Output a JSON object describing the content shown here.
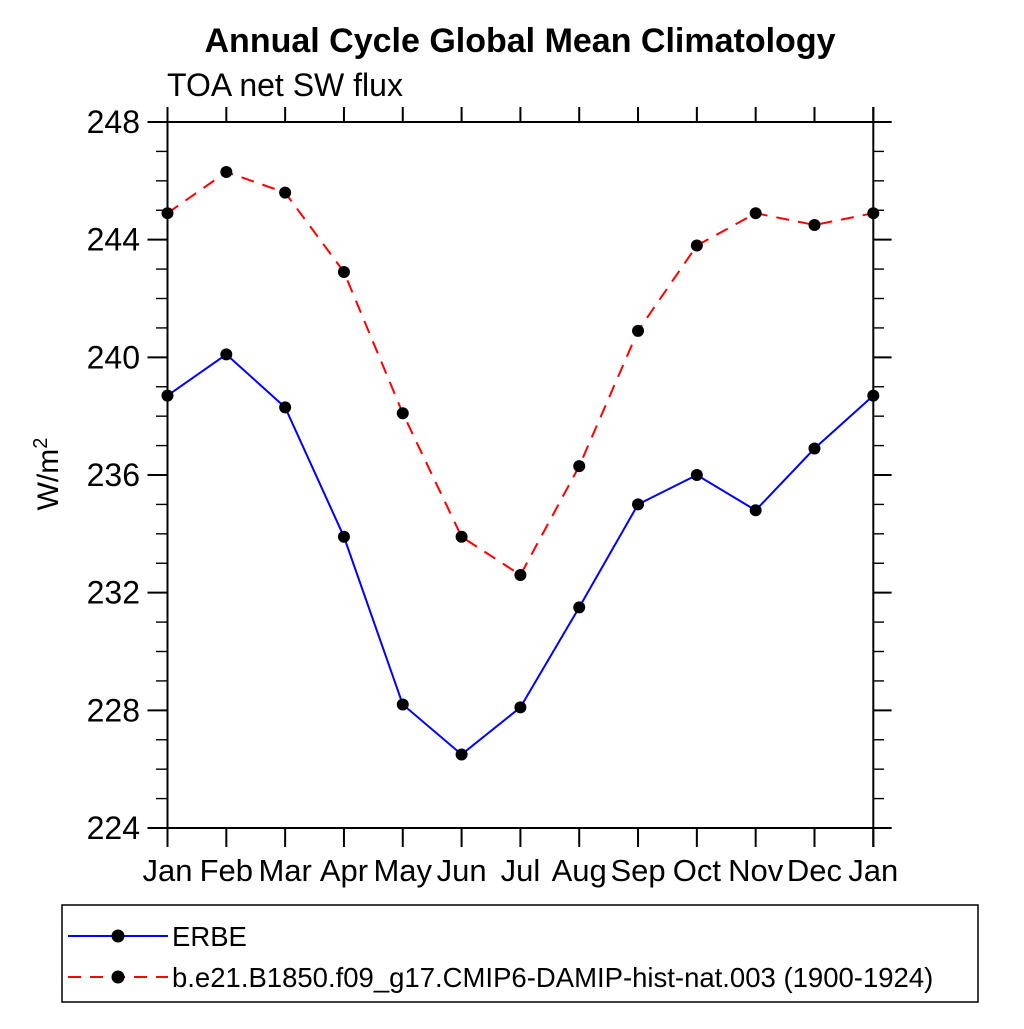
{
  "page": {
    "background": "#ffffff"
  },
  "chart_data": {
    "type": "line",
    "title": "Annual Cycle Global Mean Climatology",
    "subtitle": "TOA net SW flux",
    "ylabel_base": "W/m",
    "ylabel_exp": "2",
    "xlabel": "",
    "categories": [
      "Jan",
      "Feb",
      "Mar",
      "Apr",
      "May",
      "Jun",
      "Jul",
      "Aug",
      "Sep",
      "Oct",
      "Nov",
      "Dec",
      "Jan"
    ],
    "ylim": [
      224,
      248
    ],
    "ytick_labels": [
      224,
      228,
      232,
      236,
      240,
      244,
      248
    ],
    "ytick_minor_interval": 1,
    "grid": false,
    "legend_position": "bottom-left-box",
    "axis_color": "#000000",
    "marker_color": "#000000",
    "series": [
      {
        "name": "ERBE",
        "line_color": "#0000ff",
        "line_style": "solid",
        "marker": "filled-circle",
        "marker_color": "#000000",
        "values": [
          238.7,
          240.1,
          238.3,
          233.9,
          228.2,
          226.5,
          228.1,
          231.5,
          235.0,
          236.0,
          234.8,
          236.9,
          238.7
        ]
      },
      {
        "name": "b.e21.B1850.f09_g17.CMIP6-DAMIP-hist-nat.003 (1900-1924)",
        "line_color": "#ff0000",
        "line_style": "dashed",
        "marker": "filled-circle",
        "marker_color": "#000000",
        "values": [
          244.9,
          246.3,
          245.6,
          242.9,
          238.1,
          233.9,
          232.6,
          236.3,
          240.9,
          243.8,
          244.9,
          244.5,
          244.9
        ]
      }
    ]
  }
}
